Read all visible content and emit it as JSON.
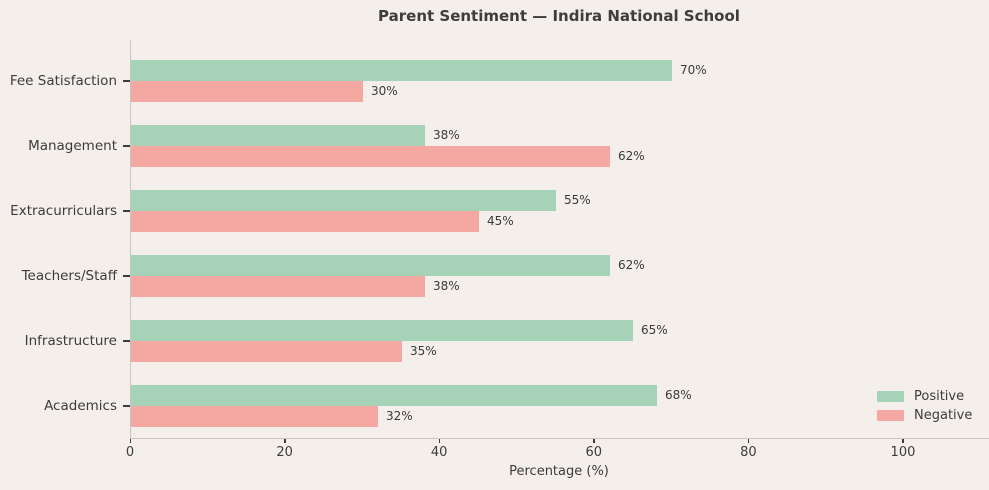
{
  "title": "Parent Sentiment — Indira National School",
  "chart_data": {
    "type": "bar",
    "orientation": "horizontal",
    "title": "Parent Sentiment — Indira National School",
    "categories": [
      "Fee Satisfaction",
      "Management",
      "Extracurriculars",
      "Teachers/Staff",
      "Infrastructure",
      "Academics"
    ],
    "series": [
      {
        "name": "Positive",
        "color": "#a6d3b8",
        "values": [
          70,
          38,
          55,
          62,
          65,
          68
        ]
      },
      {
        "name": "Negative",
        "color": "#f5a7a2",
        "values": [
          30,
          62,
          45,
          38,
          35,
          32
        ]
      }
    ],
    "value_labels": {
      "Positive": [
        "70%",
        "38%",
        "55%",
        "62%",
        "65%",
        "68%"
      ],
      "Negative": [
        "30%",
        "62%",
        "45%",
        "38%",
        "35%",
        "32%"
      ]
    },
    "value_suffix": "%",
    "xlabel": "Percentage (%)",
    "xticks": [
      0,
      20,
      40,
      60,
      80,
      100
    ],
    "xlim": [
      0,
      111
    ],
    "grid": false,
    "legend_position": "lower right",
    "colors": {
      "background": "#f4efeb",
      "spine": "#c9c5c1",
      "text": "#3c3c3c",
      "positive": "#a6d3b8",
      "negative": "#f5a7a2"
    }
  }
}
